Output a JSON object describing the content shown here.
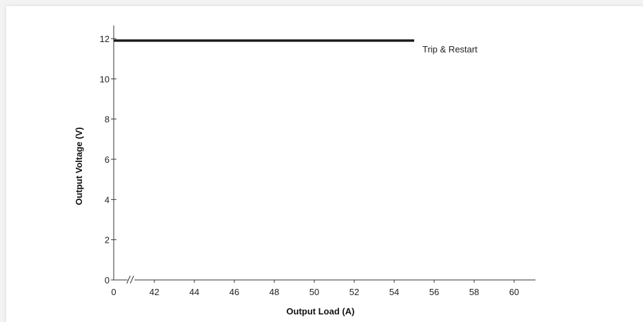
{
  "chart_data": {
    "type": "line",
    "xlabel": "Output Load (A)",
    "ylabel": "Output Voltage (V)",
    "xlim": [
      40,
      61
    ],
    "ylim": [
      0,
      12.5
    ],
    "x_ticks": [
      "0",
      "42",
      "44",
      "46",
      "48",
      "50",
      "52",
      "54",
      "56",
      "58",
      "60"
    ],
    "y_ticks": [
      "0",
      "2",
      "4",
      "6",
      "8",
      "10",
      "12"
    ],
    "axis_break": "x",
    "grid": false,
    "series": [
      {
        "x": [
          40,
          55
        ],
        "y": [
          11.9,
          11.9
        ],
        "color": "#1a1a1a"
      }
    ],
    "annotation": "Trip & Restart"
  }
}
